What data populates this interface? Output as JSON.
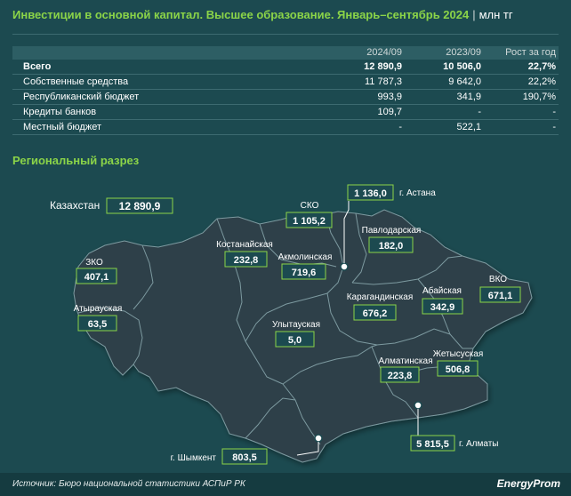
{
  "header": {
    "title": "Инвестиции в основной капитал. Высшее образование. Январь–сентябрь 2024",
    "separator": "|",
    "unit": "млн тг"
  },
  "table": {
    "columns": [
      "",
      "2024/09",
      "2023/09",
      "Рост за год"
    ],
    "rows": [
      {
        "label": "Всего",
        "v2024": "12 890,9",
        "v2023": "10 506,0",
        "growth": "22,7%"
      },
      {
        "label": "Собственные средства",
        "v2024": "11 787,3",
        "v2023": "9 642,0",
        "growth": "22,2%"
      },
      {
        "label": "Республиканский бюджет",
        "v2024": "993,9",
        "v2023": "341,9",
        "growth": "190,7%"
      },
      {
        "label": "Кредиты банков",
        "v2024": "109,7",
        "v2023": "-",
        "growth": "-"
      },
      {
        "label": "Местный бюджет",
        "v2024": "-",
        "v2023": "522,1",
        "growth": "-"
      }
    ]
  },
  "section_title": "Региональный разрез",
  "chart_data": {
    "type": "map",
    "unit": "млн тг",
    "total": {
      "name": "Казахстан",
      "value": "12 890,9"
    },
    "regions": [
      {
        "name": "г. Астана",
        "value": "1 136,0"
      },
      {
        "name": "СКО",
        "value": "1 105,2"
      },
      {
        "name": "Павлодарская",
        "value": "182,0"
      },
      {
        "name": "Костанайская",
        "value": "232,8"
      },
      {
        "name": "Акмолинская",
        "value": "719,6"
      },
      {
        "name": "ЗКО",
        "value": "407,1"
      },
      {
        "name": "ВКО",
        "value": "671,1"
      },
      {
        "name": "Атырауская",
        "value": "63,5"
      },
      {
        "name": "Абайская",
        "value": "342,9"
      },
      {
        "name": "Карагандинская",
        "value": "676,2"
      },
      {
        "name": "Улытауская",
        "value": "5,0"
      },
      {
        "name": "Жетысуская",
        "value": "506,8"
      },
      {
        "name": "Алматинская",
        "value": "223,8"
      },
      {
        "name": "г. Алматы",
        "value": "5 815,5"
      },
      {
        "name": "г. Шымкент",
        "value": "803,5"
      }
    ]
  },
  "footer": {
    "source": "Источник: Бюро национальной статистики АСПиР РК",
    "brand": "EnergyProm"
  },
  "colors": {
    "accent": "#8bd448",
    "background": "#1c4a50",
    "map_fill": "#2f3f48",
    "border": "#7d9aa0"
  }
}
